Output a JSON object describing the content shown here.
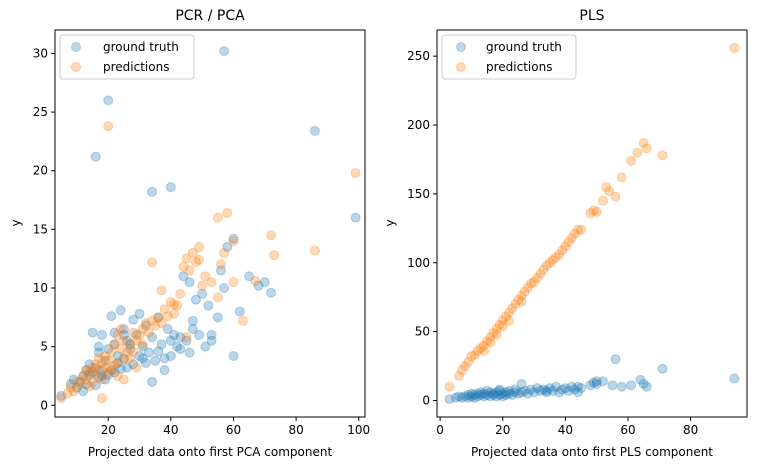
{
  "colors": {
    "ground_truth": "#1f77b4",
    "predictions": "#ff7f0e",
    "axis": "#000000",
    "legend_border": "#cccccc"
  },
  "chart_data": [
    {
      "type": "scatter",
      "title": "PCR / PCA",
      "xlabel": "Projected data onto first PCA component",
      "ylabel": "y",
      "xlim": [
        3,
        102
      ],
      "ylim": [
        -1,
        32
      ],
      "xticks": [
        20,
        40,
        60,
        80,
        100
      ],
      "yticks": [
        0,
        5,
        10,
        15,
        20,
        25,
        30
      ],
      "legend_position": "top-left",
      "series": [
        {
          "name": "ground truth",
          "color": "#1f77b4",
          "opacity": 0.3,
          "x": [
            5,
            8,
            9,
            10,
            11,
            12,
            12,
            13,
            13,
            14,
            14,
            15,
            15,
            16,
            16,
            17,
            17,
            18,
            18,
            19,
            19,
            20,
            20,
            21,
            21,
            22,
            22,
            23,
            23,
            24,
            24,
            25,
            25,
            26,
            26,
            27,
            28,
            28,
            29,
            30,
            30,
            31,
            32,
            32,
            33,
            34,
            34,
            35,
            36,
            36,
            37,
            38,
            39,
            40,
            40,
            41,
            42,
            43,
            44,
            45,
            46,
            47,
            48,
            49,
            50,
            51,
            52,
            53,
            55,
            56,
            57,
            58,
            60,
            62,
            68,
            70,
            72,
            86,
            99,
            16,
            20,
            34,
            40,
            57,
            17,
            22,
            25,
            27,
            18,
            31,
            46,
            53,
            60,
            47,
            43,
            65,
            38
          ],
          "y": [
            0.8,
            1.8,
            2.2,
            1.5,
            2.0,
            2.5,
            1.2,
            3.0,
            1.8,
            2.6,
            3.5,
            2.8,
            6.2,
            3.2,
            1.7,
            4.5,
            2.4,
            3.0,
            6.0,
            2.2,
            3.8,
            2.6,
            4.8,
            3.0,
            7.6,
            2.8,
            5.2,
            3.6,
            4.2,
            8.1,
            3.1,
            6.5,
            4.0,
            3.2,
            5.5,
            4.8,
            3.5,
            7.3,
            6.0,
            4.2,
            7.8,
            5.0,
            3.6,
            6.8,
            4.5,
            2.0,
            5.8,
            3.8,
            7.5,
            4.6,
            5.2,
            3.0,
            6.5,
            5.5,
            4.2,
            6.0,
            5.0,
            5.8,
            11.0,
            5.5,
            10.5,
            6.5,
            9.0,
            6.0,
            9.5,
            5.0,
            8.5,
            5.5,
            7.5,
            11.5,
            10.0,
            13.5,
            14.2,
            8.0,
            10.2,
            10.5,
            9.6,
            23.4,
            16.0,
            21.2,
            26.0,
            18.2,
            18.6,
            30.2,
            5.0,
            6.2,
            6.0,
            5.2,
            2.5,
            4.0,
            4.5,
            6.0,
            4.2,
            7.2,
            4.8,
            11.0,
            4.0
          ]
        },
        {
          "name": "predictions",
          "color": "#ff7f0e",
          "opacity": 0.3,
          "x": [
            5,
            7,
            8,
            9,
            10,
            11,
            12,
            13,
            13,
            14,
            14,
            15,
            15,
            16,
            16,
            17,
            17,
            18,
            18,
            19,
            19,
            20,
            20,
            21,
            21,
            22,
            22,
            23,
            23,
            24,
            24,
            25,
            25,
            26,
            27,
            28,
            28,
            29,
            30,
            31,
            32,
            33,
            34,
            35,
            36,
            37,
            38,
            39,
            40,
            41,
            42,
            43,
            44,
            45,
            46,
            47,
            48,
            49,
            50,
            51,
            53,
            55,
            56,
            57,
            58,
            60,
            63,
            67,
            72,
            73,
            86,
            99,
            20,
            34,
            23,
            29,
            45,
            37,
            41,
            25,
            18,
            27,
            31,
            49,
            60,
            55
          ],
          "y": [
            0.6,
            1.0,
            1.5,
            1.2,
            2.0,
            1.8,
            2.5,
            2.2,
            3.0,
            1.6,
            2.8,
            3.2,
            2.0,
            3.5,
            2.6,
            3.0,
            4.0,
            2.2,
            3.6,
            3.2,
            4.2,
            2.8,
            3.8,
            3.0,
            4.5,
            3.4,
            5.2,
            3.6,
            2.5,
            4.8,
            6.5,
            3.9,
            5.5,
            4.5,
            5.2,
            4.6,
            6.2,
            5.5,
            6.0,
            5.2,
            7.0,
            6.2,
            7.2,
            6.8,
            7.5,
            7.0,
            8.2,
            7.6,
            8.8,
            7.8,
            8.5,
            9.5,
            11.8,
            12.5,
            11.5,
            13.0,
            12.2,
            13.5,
            10.2,
            11.0,
            10.5,
            16.0,
            12.0,
            13.0,
            16.4,
            10.5,
            7.2,
            10.6,
            14.5,
            12.8,
            13.2,
            19.8,
            23.8,
            12.2,
            6.0,
            3.2,
            5.8,
            9.8,
            8.6,
            2.2,
            0.6,
            4.0,
            6.5,
            12.4,
            14.0,
            9.2
          ]
        }
      ]
    },
    {
      "type": "scatter",
      "title": "PLS",
      "xlabel": "Projected data onto first PLS component",
      "ylabel": "y",
      "xlim": [
        -1,
        98
      ],
      "ylim": [
        -12,
        269
      ],
      "xticks": [
        0,
        20,
        40,
        60,
        80
      ],
      "yticks": [
        0,
        50,
        100,
        150,
        200,
        250
      ],
      "legend_position": "top-left",
      "series": [
        {
          "name": "ground truth",
          "color": "#1f77b4",
          "opacity": 0.3,
          "x": [
            3,
            5,
            6,
            7,
            8,
            9,
            9,
            10,
            10,
            11,
            11,
            12,
            12,
            13,
            13,
            14,
            14,
            15,
            15,
            16,
            16,
            17,
            17,
            18,
            18,
            19,
            19,
            20,
            20,
            21,
            21,
            22,
            22,
            23,
            24,
            24,
            25,
            26,
            27,
            28,
            29,
            30,
            31,
            32,
            33,
            34,
            35,
            36,
            37,
            38,
            39,
            40,
            41,
            42,
            43,
            44,
            45,
            48,
            49,
            50,
            52,
            55,
            56,
            58,
            61,
            64,
            66,
            71,
            94,
            26,
            34,
            44,
            50,
            65,
            19
          ],
          "y": [
            1,
            2,
            3,
            2,
            3,
            4,
            2,
            3,
            5,
            2,
            4,
            3,
            5,
            4,
            6,
            3,
            5,
            4,
            7,
            3,
            6,
            4,
            5,
            3,
            6,
            4,
            7,
            3,
            5,
            6,
            4,
            5,
            7,
            4,
            6,
            8,
            5,
            6,
            7,
            5,
            8,
            6,
            9,
            7,
            8,
            6,
            9,
            7,
            10,
            6,
            8,
            9,
            7,
            10,
            8,
            6,
            9,
            11,
            13,
            12,
            14,
            11,
            30,
            10,
            11,
            15,
            10,
            23,
            16,
            12,
            7,
            10,
            14,
            12,
            8
          ]
        },
        {
          "name": "predictions",
          "color": "#ff7f0e",
          "opacity": 0.3,
          "x": [
            3,
            6,
            7,
            8,
            9,
            10,
            11,
            12,
            13,
            14,
            15,
            16,
            17,
            18,
            19,
            20,
            21,
            22,
            23,
            24,
            25,
            26,
            27,
            28,
            29,
            30,
            31,
            32,
            33,
            34,
            35,
            36,
            37,
            38,
            39,
            40,
            41,
            42,
            43,
            44,
            45,
            48,
            49,
            50,
            52,
            53,
            54,
            56,
            58,
            61,
            63,
            65,
            66,
            71,
            94,
            14,
            18,
            22,
            26,
            16,
            20
          ],
          "y": [
            10,
            18,
            22,
            25,
            28,
            32,
            33,
            36,
            38,
            40,
            43,
            46,
            49,
            52,
            55,
            58,
            61,
            64,
            67,
            70,
            73,
            76,
            79,
            82,
            85,
            86,
            89,
            92,
            95,
            98,
            100,
            102,
            104,
            106,
            109,
            112,
            115,
            118,
            121,
            124,
            124,
            136,
            138,
            137,
            145,
            155,
            152,
            148,
            162,
            174,
            180,
            187,
            183,
            178,
            256,
            36,
            48,
            58,
            72,
            42,
            54
          ]
        }
      ]
    }
  ]
}
